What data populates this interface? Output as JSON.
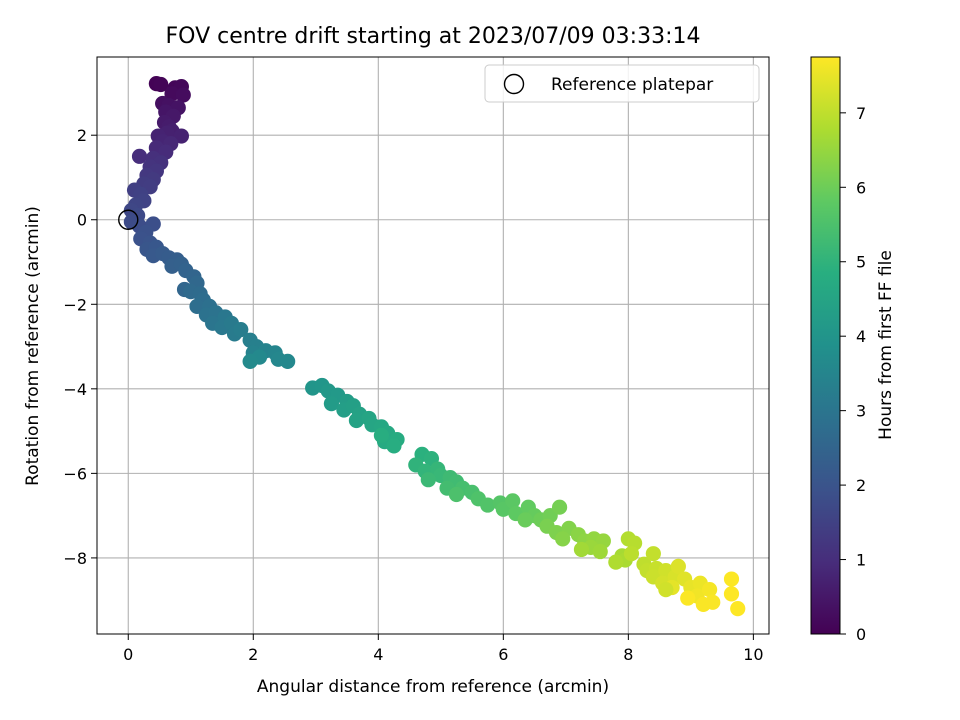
{
  "chart_data": {
    "type": "scatter",
    "title": "FOV centre drift starting at 2023/07/09 03:33:14",
    "xlabel": "Angular distance from reference (arcmin)",
    "ylabel": "Rotation from reference (arcmin)",
    "colorbar_label": "Hours from first FF file",
    "colormap": "viridis",
    "xlim": [
      -0.5,
      10.25
    ],
    "ylim": [
      -9.8,
      3.85
    ],
    "clim": [
      0,
      7.75
    ],
    "x_ticks": [
      0,
      2,
      4,
      6,
      8,
      10
    ],
    "y_ticks": [
      -8,
      -6,
      -4,
      -2,
      0,
      2
    ],
    "colorbar_ticks": [
      0,
      1,
      2,
      3,
      4,
      5,
      6,
      7
    ],
    "grid": true,
    "legend": {
      "position": "upper right",
      "entries": [
        "Reference platepar"
      ]
    },
    "reference_point": {
      "x": 0,
      "y": 0,
      "label": "Reference platepar"
    },
    "series": [
      {
        "points": [
          [
            0.45,
            3.22,
            0.05
          ],
          [
            0.52,
            3.2,
            0.08
          ],
          [
            0.75,
            3.12,
            0.12
          ],
          [
            0.85,
            3.15,
            0.15
          ],
          [
            0.7,
            2.98,
            0.2
          ],
          [
            0.88,
            2.95,
            0.25
          ],
          [
            0.55,
            2.75,
            0.3
          ],
          [
            0.65,
            2.7,
            0.35
          ],
          [
            0.8,
            2.65,
            0.4
          ],
          [
            0.6,
            2.55,
            0.45
          ],
          [
            0.72,
            2.45,
            0.5
          ],
          [
            0.58,
            2.3,
            0.55
          ],
          [
            0.65,
            2.2,
            0.6
          ],
          [
            0.7,
            2.1,
            0.65
          ],
          [
            0.62,
            2.05,
            0.7
          ],
          [
            0.85,
            1.98,
            0.72
          ],
          [
            0.48,
            1.98,
            0.75
          ],
          [
            0.55,
            1.85,
            0.8
          ],
          [
            0.68,
            1.8,
            0.85
          ],
          [
            0.45,
            1.7,
            0.9
          ],
          [
            0.6,
            1.6,
            0.95
          ],
          [
            0.18,
            1.5,
            1.0
          ],
          [
            0.4,
            1.45,
            1.05
          ],
          [
            0.52,
            1.35,
            1.1
          ],
          [
            0.35,
            1.25,
            1.15
          ],
          [
            0.45,
            1.15,
            1.2
          ],
          [
            0.3,
            1.05,
            1.25
          ],
          [
            0.4,
            0.95,
            1.3
          ],
          [
            0.25,
            0.85,
            1.35
          ],
          [
            0.35,
            0.78,
            1.4
          ],
          [
            0.1,
            0.7,
            1.45
          ],
          [
            0.2,
            0.6,
            1.5
          ],
          [
            0.25,
            0.45,
            1.55
          ],
          [
            0.12,
            0.35,
            1.6
          ],
          [
            0.05,
            0.22,
            1.65
          ],
          [
            0.15,
            0.1,
            1.7
          ],
          [
            0.05,
            -0.05,
            1.75
          ],
          [
            0.18,
            -0.15,
            1.8
          ],
          [
            0.4,
            -0.1,
            1.85
          ],
          [
            0.28,
            -0.3,
            1.9
          ],
          [
            0.2,
            -0.45,
            1.95
          ],
          [
            0.35,
            -0.55,
            2.0
          ],
          [
            0.3,
            -0.7,
            2.05
          ],
          [
            0.45,
            -0.65,
            2.1
          ],
          [
            0.4,
            -0.85,
            2.15
          ],
          [
            0.55,
            -0.8,
            2.2
          ],
          [
            0.65,
            -0.9,
            2.25
          ],
          [
            0.78,
            -0.95,
            2.3
          ],
          [
            0.7,
            -1.1,
            2.35
          ],
          [
            0.85,
            -1.05,
            2.4
          ],
          [
            0.92,
            -1.2,
            2.45
          ],
          [
            1.05,
            -1.35,
            2.5
          ],
          [
            0.9,
            -1.65,
            2.55
          ],
          [
            1.1,
            -1.5,
            2.6
          ],
          [
            1.0,
            -1.7,
            2.65
          ],
          [
            1.15,
            -1.75,
            2.7
          ],
          [
            1.2,
            -1.9,
            2.75
          ],
          [
            1.1,
            -2.05,
            2.8
          ],
          [
            1.3,
            -2.05,
            2.85
          ],
          [
            1.25,
            -2.25,
            2.9
          ],
          [
            1.4,
            -2.2,
            2.95
          ],
          [
            1.35,
            -2.45,
            3.0
          ],
          [
            1.55,
            -2.3,
            3.05
          ],
          [
            1.5,
            -2.55,
            3.1
          ],
          [
            1.65,
            -2.45,
            3.15
          ],
          [
            1.7,
            -2.7,
            3.2
          ],
          [
            1.8,
            -2.6,
            3.25
          ],
          [
            1.95,
            -2.85,
            3.3
          ],
          [
            2.05,
            -3.0,
            3.35
          ],
          [
            2.0,
            -3.15,
            3.4
          ],
          [
            2.2,
            -3.1,
            3.45
          ],
          [
            2.35,
            -3.15,
            3.5
          ],
          [
            2.4,
            -3.3,
            3.55
          ],
          [
            2.55,
            -3.35,
            3.6
          ],
          [
            2.1,
            -3.25,
            3.62
          ],
          [
            1.95,
            -3.35,
            3.65
          ],
          [
            2.95,
            -3.98,
            4.0
          ],
          [
            3.1,
            -3.92,
            4.05
          ],
          [
            3.2,
            -4.05,
            4.1
          ],
          [
            3.35,
            -4.15,
            4.15
          ],
          [
            3.25,
            -4.35,
            4.2
          ],
          [
            3.5,
            -4.3,
            4.25
          ],
          [
            3.45,
            -4.5,
            4.3
          ],
          [
            3.6,
            -4.4,
            4.35
          ],
          [
            3.7,
            -4.6,
            4.4
          ],
          [
            3.65,
            -4.75,
            4.45
          ],
          [
            3.85,
            -4.7,
            4.5
          ],
          [
            3.9,
            -4.85,
            4.55
          ],
          [
            4.05,
            -4.9,
            4.6
          ],
          [
            4.15,
            -5.05,
            4.65
          ],
          [
            4.1,
            -5.25,
            4.7
          ],
          [
            4.3,
            -5.2,
            4.75
          ],
          [
            4.25,
            -5.35,
            4.8
          ],
          [
            4.05,
            -5.1,
            4.82
          ],
          [
            4.7,
            -5.55,
            4.9
          ],
          [
            4.85,
            -5.65,
            4.95
          ],
          [
            4.6,
            -5.8,
            5.0
          ],
          [
            4.75,
            -5.95,
            5.05
          ],
          [
            4.95,
            -5.9,
            5.1
          ],
          [
            5.0,
            -6.05,
            5.15
          ],
          [
            4.8,
            -6.15,
            5.2
          ],
          [
            5.15,
            -6.1,
            5.25
          ],
          [
            5.25,
            -6.2,
            5.3
          ],
          [
            5.1,
            -6.35,
            5.35
          ],
          [
            5.35,
            -6.35,
            5.4
          ],
          [
            5.5,
            -6.45,
            5.45
          ],
          [
            5.25,
            -6.5,
            5.5
          ],
          [
            5.6,
            -6.6,
            5.55
          ],
          [
            5.75,
            -6.75,
            5.6
          ],
          [
            5.95,
            -6.7,
            5.65
          ],
          [
            6.0,
            -6.85,
            5.7
          ],
          [
            6.15,
            -6.65,
            5.75
          ],
          [
            6.2,
            -6.95,
            5.8
          ],
          [
            6.4,
            -6.8,
            5.85
          ],
          [
            6.5,
            -7.0,
            5.9
          ],
          [
            6.35,
            -7.1,
            5.95
          ],
          [
            6.6,
            -7.1,
            6.0
          ],
          [
            6.75,
            -7.0,
            6.05
          ],
          [
            6.9,
            -6.8,
            6.1
          ],
          [
            6.7,
            -7.25,
            6.15
          ],
          [
            6.85,
            -7.4,
            6.2
          ],
          [
            7.05,
            -7.3,
            6.25
          ],
          [
            6.95,
            -7.55,
            6.3
          ],
          [
            7.2,
            -7.45,
            6.35
          ],
          [
            7.3,
            -7.6,
            6.4
          ],
          [
            7.45,
            -7.55,
            6.45
          ],
          [
            7.6,
            -7.6,
            6.5
          ],
          [
            7.4,
            -7.75,
            6.55
          ],
          [
            7.55,
            -7.85,
            6.6
          ],
          [
            7.25,
            -7.8,
            6.65
          ],
          [
            7.9,
            -7.95,
            6.7
          ],
          [
            7.95,
            -8.05,
            6.75
          ],
          [
            7.8,
            -8.1,
            6.8
          ],
          [
            8.0,
            -7.55,
            6.85
          ],
          [
            8.1,
            -7.65,
            6.9
          ],
          [
            8.05,
            -7.9,
            6.95
          ],
          [
            8.25,
            -8.15,
            7.0
          ],
          [
            8.3,
            -8.3,
            7.05
          ],
          [
            8.45,
            -8.25,
            7.1
          ],
          [
            8.4,
            -8.45,
            7.15
          ],
          [
            8.6,
            -8.3,
            7.2
          ],
          [
            8.55,
            -8.6,
            7.25
          ],
          [
            8.75,
            -8.45,
            7.3
          ],
          [
            8.8,
            -8.2,
            7.35
          ],
          [
            8.9,
            -8.5,
            7.4
          ],
          [
            8.7,
            -8.7,
            7.45
          ],
          [
            9.0,
            -8.7,
            7.5
          ],
          [
            9.15,
            -8.6,
            7.55
          ],
          [
            9.1,
            -8.9,
            7.6
          ],
          [
            9.3,
            -8.75,
            7.65
          ],
          [
            9.2,
            -9.1,
            7.7
          ],
          [
            8.95,
            -8.95,
            7.72
          ],
          [
            9.65,
            -8.5,
            7.74
          ],
          [
            9.65,
            -8.85,
            7.75
          ],
          [
            9.75,
            -9.2,
            7.76
          ],
          [
            8.4,
            -7.9,
            7.05
          ],
          [
            8.6,
            -8.75,
            7.2
          ],
          [
            9.35,
            -9.05,
            7.7
          ]
        ]
      }
    ]
  }
}
